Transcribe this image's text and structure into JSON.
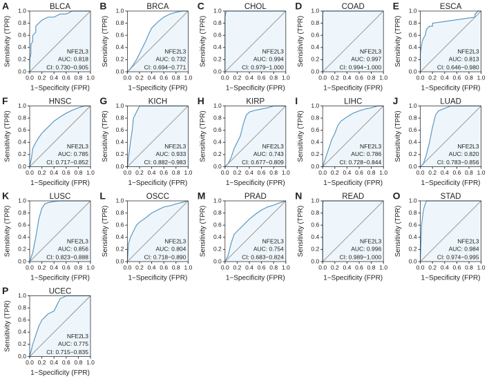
{
  "chart_data": [
    {
      "type": "line",
      "panel": "A",
      "title": "BLCA",
      "gene": "NFE2L3",
      "auc_text": "AUC: 0.818",
      "ci_text": "CI: 0.730−0.905",
      "xlabel": "1−Specificity (FPR)",
      "ylabel": "Sensitivity (TPR)",
      "color": "#5b97c2",
      "fill": "#eef6fb",
      "xlim": [
        0,
        1
      ],
      "ylim": [
        0,
        1
      ],
      "xticks": [
        {
          "value": 0,
          "label": "0.0"
        },
        0.2,
        0.4,
        0.6,
        0.8,
        {
          "value": 1,
          "label": "1.0"
        }
      ],
      "yticks": [
        {
          "value": 0,
          "label": "0.0"
        },
        0.2,
        0.4,
        0.6,
        0.8,
        {
          "value": 1,
          "label": "1.0"
        }
      ],
      "x": [
        0,
        0,
        0.02,
        0.02,
        0.05,
        0.05,
        0.1,
        0.1,
        0.15,
        0.2,
        0.3,
        0.4,
        0.5,
        0.6,
        0.7,
        1
      ],
      "y": [
        0,
        0.2,
        0.3,
        0.45,
        0.5,
        0.6,
        0.65,
        0.75,
        0.8,
        0.85,
        0.9,
        0.9,
        0.95,
        0.95,
        1,
        1
      ]
    },
    {
      "type": "line",
      "panel": "B",
      "title": "BRCA",
      "gene": "NFE2L3",
      "auc_text": "AUC: 0.732",
      "ci_text": "CI: 0.694−0.771",
      "xlabel": "1−Specificity (FPR)",
      "ylabel": "Sensitivity (TPR)",
      "color": "#5b97c2",
      "fill": "#eef6fb",
      "xlim": [
        0,
        1
      ],
      "ylim": [
        0,
        1
      ],
      "xticks": [
        {
          "value": 0,
          "label": "0.0"
        },
        0.2,
        0.4,
        0.6,
        0.8,
        {
          "value": 1,
          "label": "1.0"
        }
      ],
      "yticks": [
        {
          "value": 0,
          "label": "0.0"
        },
        0.2,
        0.4,
        0.6,
        0.8,
        {
          "value": 1,
          "label": "1.0"
        }
      ],
      "x": [
        0,
        0.05,
        0.1,
        0.15,
        0.2,
        0.25,
        0.3,
        0.35,
        0.4,
        0.5,
        0.6,
        0.7,
        0.8,
        0.9,
        1
      ],
      "y": [
        0,
        0.05,
        0.12,
        0.2,
        0.3,
        0.4,
        0.5,
        0.62,
        0.72,
        0.82,
        0.9,
        0.95,
        0.98,
        1,
        1
      ]
    },
    {
      "type": "line",
      "panel": "C",
      "title": "CHOL",
      "gene": "NFE2L3",
      "auc_text": "AUC: 0.994",
      "ci_text": "CI: 0.979−1.000",
      "xlabel": "1−Specificity (FPR)",
      "ylabel": "Sensitivity (TPR)",
      "color": "#5b97c2",
      "fill": "#eef6fb",
      "xlim": [
        0,
        1
      ],
      "ylim": [
        0,
        1
      ],
      "xticks": [
        {
          "value": 0,
          "label": "0.0"
        },
        0.2,
        0.4,
        0.6,
        0.8,
        {
          "value": 1,
          "label": "1.0"
        }
      ],
      "yticks": [
        {
          "value": 0,
          "label": "0.0"
        },
        0.2,
        0.4,
        0.6,
        0.8,
        {
          "value": 1,
          "label": "1.0"
        }
      ],
      "x": [
        0,
        0,
        0.02,
        1
      ],
      "y": [
        0,
        0.9,
        1,
        1
      ]
    },
    {
      "type": "line",
      "panel": "D",
      "title": "COAD",
      "gene": "NFE2L3",
      "auc_text": "AUC: 0.997",
      "ci_text": "CI: 0.994−1.000",
      "xlabel": "1−Specificity (FPR)",
      "ylabel": "Sensitivity (TPR)",
      "color": "#5b97c2",
      "fill": "#eef6fb",
      "xlim": [
        0,
        1
      ],
      "ylim": [
        0,
        1
      ],
      "xticks": [
        {
          "value": 0,
          "label": "0.0"
        },
        0.2,
        0.4,
        0.6,
        0.8,
        {
          "value": 1,
          "label": "1.0"
        }
      ],
      "yticks": [
        {
          "value": 0,
          "label": "0.0"
        },
        0.2,
        0.4,
        0.6,
        0.8,
        {
          "value": 1,
          "label": "1.0"
        }
      ],
      "x": [
        0,
        0,
        0.01,
        1
      ],
      "y": [
        0,
        0.95,
        1,
        1
      ]
    },
    {
      "type": "line",
      "panel": "E",
      "title": "ESCA",
      "gene": "NFE2L3",
      "auc_text": "AUC: 0.813",
      "ci_text": "CI: 0.646−0.980",
      "xlabel": "1−Specificity (FPR)",
      "ylabel": "Sensitivity (TPR)",
      "color": "#5b97c2",
      "fill": "#eef6fb",
      "xlim": [
        0,
        1
      ],
      "ylim": [
        0,
        1
      ],
      "xticks": [
        {
          "value": 0,
          "label": "0.0"
        },
        0.2,
        0.4,
        0.6,
        0.8,
        {
          "value": 1,
          "label": "1.0"
        }
      ],
      "yticks": [
        {
          "value": 0,
          "label": "0.0"
        },
        0.2,
        0.4,
        0.6,
        0.8,
        {
          "value": 1,
          "label": "1.0"
        }
      ],
      "x": [
        0,
        0,
        0.03,
        0.05,
        0.08,
        0.1,
        0.15,
        0.2,
        0.2,
        0.9,
        0.9,
        0.95,
        1
      ],
      "y": [
        0,
        0.3,
        0.5,
        0.55,
        0.6,
        0.7,
        0.75,
        0.75,
        0.8,
        0.9,
        0.95,
        1,
        1
      ]
    },
    {
      "type": "line",
      "panel": "F",
      "title": "HNSC",
      "gene": "NFE2L3",
      "auc_text": "AUC: 0.785",
      "ci_text": "CI: 0.717−0.852",
      "xlabel": "1−Specificity (FPR)",
      "ylabel": "Sensitivity (TPR)",
      "color": "#5b97c2",
      "fill": "#eef6fb",
      "xlim": [
        0,
        1
      ],
      "ylim": [
        0,
        1
      ],
      "xticks": [
        {
          "value": 0,
          "label": "0.0"
        },
        0.2,
        0.4,
        0.6,
        0.8,
        {
          "value": 1,
          "label": "1.0"
        }
      ],
      "yticks": [
        {
          "value": 0,
          "label": "0.0"
        },
        0.2,
        0.4,
        0.6,
        0.8,
        {
          "value": 1,
          "label": "1.0"
        }
      ],
      "x": [
        0,
        0.03,
        0.05,
        0.1,
        0.15,
        0.2,
        0.25,
        0.3,
        0.4,
        0.5,
        0.6,
        0.7,
        0.8,
        0.9,
        1
      ],
      "y": [
        0,
        0.15,
        0.3,
        0.4,
        0.48,
        0.55,
        0.6,
        0.65,
        0.75,
        0.82,
        0.88,
        0.93,
        0.97,
        1,
        1
      ]
    },
    {
      "type": "line",
      "panel": "G",
      "title": "KICH",
      "gene": "NFE2L3",
      "auc_text": "AUC: 0.933",
      "ci_text": "CI: 0.882−0.983",
      "xlabel": "1−Specificity (FPR)",
      "ylabel": "Sensitivity (TPR)",
      "color": "#5b97c2",
      "fill": "#eef6fb",
      "xlim": [
        0,
        1
      ],
      "ylim": [
        0,
        1
      ],
      "xticks": [
        {
          "value": 0,
          "label": "0.0"
        },
        0.2,
        0.4,
        0.6,
        0.8,
        {
          "value": 1,
          "label": "1.0"
        }
      ],
      "yticks": [
        {
          "value": 0,
          "label": "0.0"
        },
        0.2,
        0.4,
        0.6,
        0.8,
        {
          "value": 1,
          "label": "1.0"
        }
      ],
      "x": [
        0,
        0.05,
        0.08,
        0.1,
        0.15,
        0.2,
        1
      ],
      "y": [
        0,
        0.4,
        0.6,
        0.8,
        0.9,
        1,
        1
      ]
    },
    {
      "type": "line",
      "panel": "H",
      "title": "KIRP",
      "gene": "NFE2L3",
      "auc_text": "AUC: 0.743",
      "ci_text": "CI: 0.677−0.809",
      "xlabel": "1−Specificity (FPR)",
      "ylabel": "Sensitivity (TPR)",
      "color": "#5b97c2",
      "fill": "#eef6fb",
      "xlim": [
        0,
        1
      ],
      "ylim": [
        0,
        1
      ],
      "xticks": [
        {
          "value": 0,
          "label": "0.0"
        },
        0.2,
        0.4,
        0.6,
        0.8,
        {
          "value": 1,
          "label": "1.0"
        }
      ],
      "yticks": [
        {
          "value": 0,
          "label": "0.0"
        },
        0.2,
        0.4,
        0.6,
        0.8,
        {
          "value": 1,
          "label": "1.0"
        }
      ],
      "x": [
        0,
        0.05,
        0.1,
        0.15,
        0.2,
        0.25,
        0.3,
        0.35,
        0.4,
        0.5,
        0.6,
        0.7,
        0.8,
        1
      ],
      "y": [
        0,
        0.05,
        0.15,
        0.3,
        0.4,
        0.5,
        0.7,
        0.85,
        0.9,
        0.93,
        0.95,
        0.97,
        1,
        1
      ]
    },
    {
      "type": "line",
      "panel": "I",
      "title": "LIHC",
      "gene": "NFE2L3",
      "auc_text": "AUC: 0.786",
      "ci_text": "CI: 0.728−0.844",
      "xlabel": "1−Specificity (FPR)",
      "ylabel": "Sensitivity (TPR)",
      "color": "#5b97c2",
      "fill": "#eef6fb",
      "xlim": [
        0,
        1
      ],
      "ylim": [
        0,
        1
      ],
      "xticks": [
        {
          "value": 0,
          "label": "0.0"
        },
        0.2,
        0.4,
        0.6,
        0.8,
        {
          "value": 1,
          "label": "1.0"
        }
      ],
      "yticks": [
        {
          "value": 0,
          "label": "0.0"
        },
        0.2,
        0.4,
        0.6,
        0.8,
        {
          "value": 1,
          "label": "1.0"
        }
      ],
      "x": [
        0,
        0.05,
        0.1,
        0.15,
        0.2,
        0.25,
        0.3,
        0.4,
        0.5,
        0.6,
        0.7,
        0.8,
        0.9,
        1
      ],
      "y": [
        0,
        0.15,
        0.3,
        0.45,
        0.55,
        0.68,
        0.75,
        0.82,
        0.88,
        0.92,
        0.95,
        0.97,
        1,
        1
      ]
    },
    {
      "type": "line",
      "panel": "J",
      "title": "LUAD",
      "gene": "NFE2L3",
      "auc_text": "AUC: 0.820",
      "ci_text": "CI: 0.783−0.856",
      "xlabel": "1−Specificity (FPR)",
      "ylabel": "Sensitivity (TPR)",
      "color": "#5b97c2",
      "fill": "#eef6fb",
      "xlim": [
        0,
        1
      ],
      "ylim": [
        0,
        1
      ],
      "xticks": [
        {
          "value": 0,
          "label": "0.0"
        },
        0.2,
        0.4,
        0.6,
        0.8,
        {
          "value": 1,
          "label": "1.0"
        }
      ],
      "yticks": [
        {
          "value": 0,
          "label": "0.0"
        },
        0.2,
        0.4,
        0.6,
        0.8,
        {
          "value": 1,
          "label": "1.0"
        }
      ],
      "x": [
        0,
        0.05,
        0.1,
        0.15,
        0.2,
        0.25,
        0.3,
        0.4,
        0.5,
        1
      ],
      "y": [
        0,
        0.05,
        0.2,
        0.4,
        0.65,
        0.85,
        0.92,
        0.96,
        1,
        1
      ]
    },
    {
      "type": "line",
      "panel": "K",
      "title": "LUSC",
      "gene": "NFE2L3",
      "auc_text": "AUC: 0.856",
      "ci_text": "CI: 0.823−0.888",
      "xlabel": "1−Specificity (FPR)",
      "ylabel": "Sensitivity (TPR)",
      "color": "#5b97c2",
      "fill": "#eef6fb",
      "xlim": [
        0,
        1
      ],
      "ylim": [
        0,
        1
      ],
      "xticks": [
        {
          "value": 0,
          "label": "0.0"
        },
        0.2,
        0.4,
        0.6,
        0.8,
        {
          "value": 1,
          "label": "1.0"
        }
      ],
      "yticks": [
        {
          "value": 0,
          "label": "0.0"
        },
        0.2,
        0.4,
        0.6,
        0.8,
        {
          "value": 1,
          "label": "1.0"
        }
      ],
      "x": [
        0,
        0.05,
        0.1,
        0.15,
        0.2,
        0.25,
        0.3,
        0.4,
        0.5,
        1
      ],
      "y": [
        0,
        0.15,
        0.4,
        0.7,
        0.88,
        0.95,
        0.97,
        0.99,
        1,
        1
      ]
    },
    {
      "type": "line",
      "panel": "L",
      "title": "OSCC",
      "gene": "NFE2L3",
      "auc_text": "AUC: 0.804",
      "ci_text": "CI: 0.718−0.890",
      "xlabel": "1−Specificity (FPR)",
      "ylabel": "Sensitivity (TPR)",
      "color": "#5b97c2",
      "fill": "#eef6fb",
      "xlim": [
        0,
        1
      ],
      "ylim": [
        0,
        1
      ],
      "xticks": [
        {
          "value": 0,
          "label": "0.0"
        },
        0.2,
        0.4,
        0.6,
        0.8,
        {
          "value": 1,
          "label": "1.0"
        }
      ],
      "yticks": [
        {
          "value": 0,
          "label": "0.0"
        },
        0.2,
        0.4,
        0.6,
        0.8,
        {
          "value": 1,
          "label": "1.0"
        }
      ],
      "x": [
        0,
        0.02,
        0.05,
        0.1,
        0.15,
        0.2,
        0.3,
        0.4,
        0.5,
        0.6,
        0.7,
        0.8,
        1
      ],
      "y": [
        0,
        0.3,
        0.4,
        0.5,
        0.6,
        0.65,
        0.72,
        0.8,
        0.85,
        0.9,
        0.92,
        0.95,
        1
      ]
    },
    {
      "type": "line",
      "panel": "M",
      "title": "PRAD",
      "gene": "NFE2L3",
      "auc_text": "AUC: 0.754",
      "ci_text": "CI: 0.683−0.824",
      "xlabel": "1−Specificity (FPR)",
      "ylabel": "Sensitivity (TPR)",
      "color": "#5b97c2",
      "fill": "#eef6fb",
      "xlim": [
        0,
        1
      ],
      "ylim": [
        0,
        1
      ],
      "xticks": [
        {
          "value": 0,
          "label": "0.0"
        },
        0.2,
        0.4,
        0.6,
        0.8,
        {
          "value": 1,
          "label": "1.0"
        }
      ],
      "yticks": [
        {
          "value": 0,
          "label": "0.0"
        },
        0.2,
        0.4,
        0.6,
        0.8,
        {
          "value": 1,
          "label": "1.0"
        }
      ],
      "x": [
        0,
        0.05,
        0.1,
        0.15,
        0.2,
        0.3,
        0.4,
        0.5,
        0.6,
        0.7,
        0.8,
        0.9,
        1
      ],
      "y": [
        0,
        0.1,
        0.3,
        0.45,
        0.5,
        0.6,
        0.7,
        0.78,
        0.85,
        0.9,
        0.93,
        0.97,
        1
      ]
    },
    {
      "type": "line",
      "panel": "N",
      "title": "READ",
      "gene": "NFE2L3",
      "auc_text": "AUC: 0.996",
      "ci_text": "CI: 0.989−1.000",
      "xlabel": "1−Specificity (FPR)",
      "ylabel": "Sensitivity (TPR)",
      "color": "#5b97c2",
      "fill": "#eef6fb",
      "xlim": [
        0,
        1
      ],
      "ylim": [
        0,
        1
      ],
      "xticks": [
        {
          "value": 0,
          "label": "0.0"
        },
        0.2,
        0.4,
        0.6,
        0.8,
        {
          "value": 1,
          "label": "1.0"
        }
      ],
      "yticks": [
        {
          "value": 0,
          "label": "0.0"
        },
        0.2,
        0.4,
        0.6,
        0.8,
        {
          "value": 1,
          "label": "1.0"
        }
      ],
      "x": [
        0,
        0,
        0.01,
        1
      ],
      "y": [
        0,
        0.95,
        1,
        1
      ]
    },
    {
      "type": "line",
      "panel": "O",
      "title": "STAD",
      "gene": "NFE2L3",
      "auc_text": "AUC: 0.984",
      "ci_text": "CI: 0.974−0.995",
      "xlabel": "1−Specificity (FPR)",
      "ylabel": "Sensitivity (TPR)",
      "color": "#5b97c2",
      "fill": "#eef6fb",
      "xlim": [
        0,
        1
      ],
      "ylim": [
        0,
        1
      ],
      "xticks": [
        {
          "value": 0,
          "label": "0.0"
        },
        0.2,
        0.4,
        0.6,
        0.8,
        {
          "value": 1,
          "label": "1.0"
        }
      ],
      "yticks": [
        {
          "value": 0,
          "label": "0.0"
        },
        0.2,
        0.4,
        0.6,
        0.8,
        {
          "value": 1,
          "label": "1.0"
        }
      ],
      "x": [
        0,
        0.02,
        0.05,
        0.08,
        0.1,
        1
      ],
      "y": [
        0,
        0.6,
        0.85,
        0.95,
        1,
        1
      ]
    },
    {
      "type": "line",
      "panel": "P",
      "title": "UCEC",
      "gene": "NFE2L3",
      "auc_text": "AUC: 0.775",
      "ci_text": "CI: 0.715−0.835",
      "xlabel": "1−Specificity (FPR)",
      "ylabel": "Sensitivity (TPR)",
      "color": "#5b97c2",
      "fill": "#eef6fb",
      "xlim": [
        0,
        1
      ],
      "ylim": [
        0,
        1
      ],
      "xticks": [
        {
          "value": 0,
          "label": "0.0"
        },
        0.2,
        0.4,
        0.6,
        0.8,
        {
          "value": 1,
          "label": "1.0"
        }
      ],
      "yticks": [
        {
          "value": 0,
          "label": "0.0"
        },
        0.2,
        0.4,
        0.6,
        0.8,
        {
          "value": 1,
          "label": "1.0"
        }
      ],
      "x": [
        0,
        0.05,
        0.1,
        0.15,
        0.2,
        0.3,
        0.4,
        0.45,
        0.5,
        0.6,
        1
      ],
      "y": [
        0,
        0.2,
        0.35,
        0.5,
        0.6,
        0.7,
        0.75,
        0.85,
        0.95,
        1,
        1
      ]
    }
  ]
}
